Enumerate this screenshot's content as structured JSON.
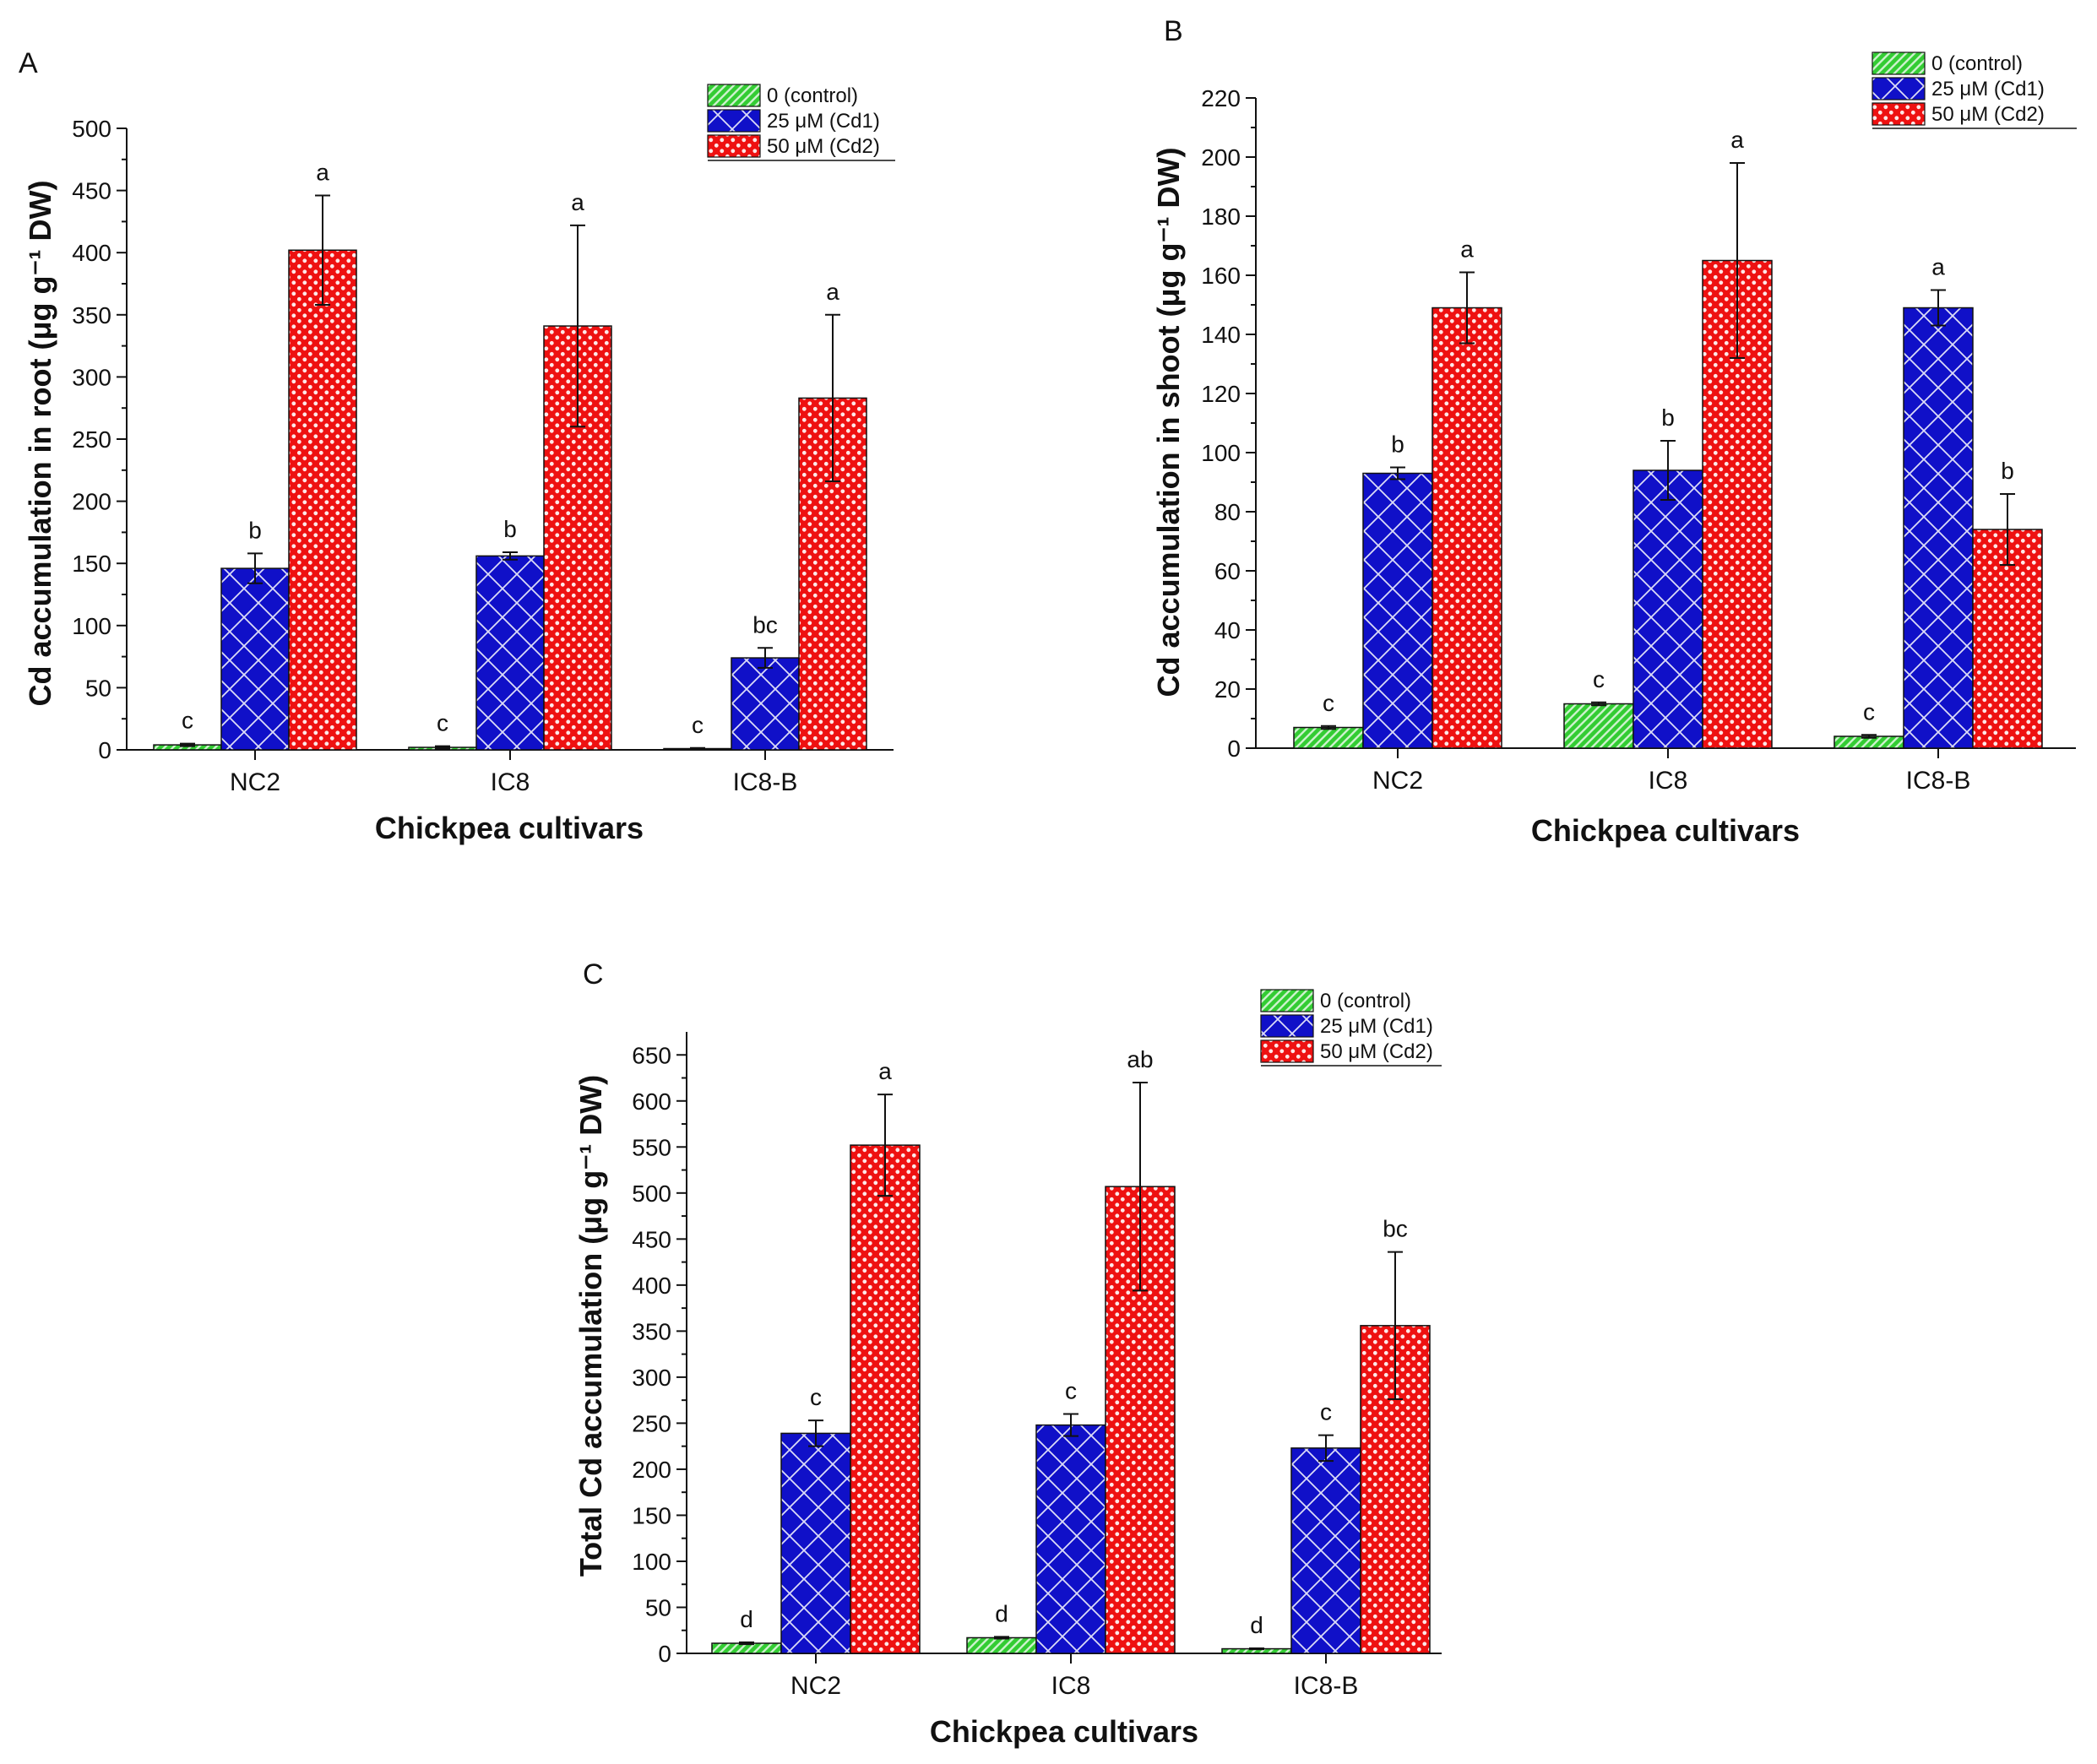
{
  "colors": {
    "control": "#33cc33",
    "cd1": "#1010c8",
    "cd2": "#ee1111"
  },
  "legend": [
    "0 (control)",
    "25 μM (Cd1)",
    "50 μM (Cd2)"
  ],
  "chart_data": [
    {
      "type": "bar",
      "panel": "A",
      "title": "",
      "xlabel": "Chickpea cultivars",
      "ylabel": "Cd accumulation in root (μg g⁻¹ DW)",
      "ylim": [
        0,
        500
      ],
      "yticks": [
        0,
        50,
        100,
        150,
        200,
        250,
        300,
        350,
        400,
        450,
        500
      ],
      "categories": [
        "NC2",
        "IC8",
        "IC8-B"
      ],
      "series": [
        {
          "name": "0 (control)",
          "values": [
            4,
            2,
            1
          ],
          "errors": [
            1,
            1,
            0.5
          ],
          "letters": [
            "c",
            "c",
            "c"
          ]
        },
        {
          "name": "25 μM (Cd1)",
          "values": [
            146,
            156,
            74
          ],
          "errors": [
            12,
            3,
            8
          ],
          "letters": [
            "b",
            "b",
            "bc"
          ]
        },
        {
          "name": "50 μM (Cd2)",
          "values": [
            402,
            341,
            283
          ],
          "errors": [
            44,
            81,
            67
          ],
          "letters": [
            "a",
            "a",
            "a"
          ]
        }
      ]
    },
    {
      "type": "bar",
      "panel": "B",
      "title": "",
      "xlabel": "Chickpea cultivars",
      "ylabel": "Cd accumulation in shoot (μg g⁻¹ DW)",
      "ylim": [
        0,
        220
      ],
      "yticks": [
        0,
        20,
        40,
        60,
        80,
        100,
        120,
        140,
        160,
        180,
        200,
        220
      ],
      "categories": [
        "NC2",
        "IC8",
        "IC8-B"
      ],
      "series": [
        {
          "name": "0 (control)",
          "values": [
            7,
            15,
            4
          ],
          "errors": [
            0.5,
            0.5,
            0.5
          ],
          "letters": [
            "c",
            "c",
            "c"
          ]
        },
        {
          "name": "25 μM (Cd1)",
          "values": [
            93,
            94,
            149
          ],
          "errors": [
            2,
            10,
            6
          ],
          "letters": [
            "b",
            "b",
            "a"
          ]
        },
        {
          "name": "50 μM (Cd2)",
          "values": [
            149,
            165,
            74
          ],
          "errors": [
            12,
            33,
            12
          ],
          "letters": [
            "a",
            "a",
            "b"
          ]
        }
      ]
    },
    {
      "type": "bar",
      "panel": "C",
      "title": "",
      "xlabel": "Chickpea cultivars",
      "ylabel": "Total Cd accumulation (μg g⁻¹ DW)",
      "ylim": [
        0,
        675
      ],
      "yticks": [
        0,
        50,
        100,
        150,
        200,
        250,
        300,
        350,
        400,
        450,
        500,
        550,
        600,
        650
      ],
      "categories": [
        "NC2",
        "IC8",
        "IC8-B"
      ],
      "series": [
        {
          "name": "0 (control)",
          "values": [
            11,
            17,
            5
          ],
          "errors": [
            1,
            1,
            0.5
          ],
          "letters": [
            "d",
            "d",
            "d"
          ]
        },
        {
          "name": "25 μM (Cd1)",
          "values": [
            239,
            248,
            223
          ],
          "errors": [
            14,
            12,
            14
          ],
          "letters": [
            "c",
            "c",
            "c"
          ]
        },
        {
          "name": "50 μM (Cd2)",
          "values": [
            552,
            507,
            356
          ],
          "errors": [
            55,
            113,
            80
          ],
          "letters": [
            "a",
            "ab",
            "bc"
          ]
        }
      ]
    }
  ]
}
